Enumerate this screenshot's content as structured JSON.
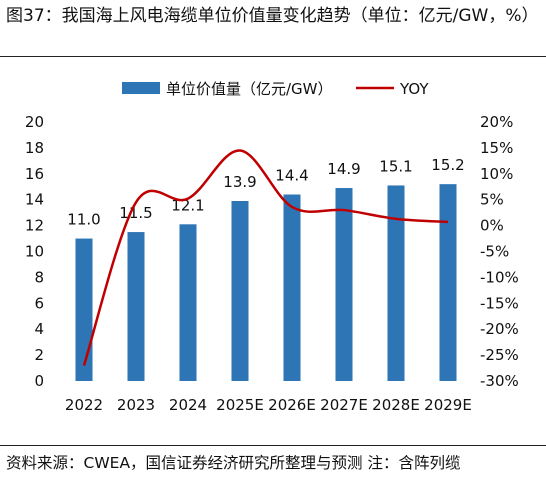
{
  "figure": {
    "title": "图37：我国海上风电海缆单位价值量变化趋势（单位：亿元/GW，%）",
    "source": "资料来源：CWEA，国信证券经济研究所整理与预测  注：含阵列缆"
  },
  "colors": {
    "bar": "#2e75b6",
    "line": "#c00000",
    "text": "#111111",
    "rule": "#222222"
  },
  "chart_data": {
    "type": "bar",
    "title": "",
    "xlabel": "",
    "ylabel": "",
    "categories": [
      "2022",
      "2023",
      "2024",
      "2025E",
      "2026E",
      "2027E",
      "2028E",
      "2029E"
    ],
    "series": [
      {
        "name": "单位价值量（亿元/GW）",
        "type": "bar",
        "axis": "left",
        "values": [
          11.0,
          11.5,
          12.1,
          13.9,
          14.4,
          14.9,
          15.1,
          15.2
        ],
        "labels": [
          "11.0",
          "11.5",
          "12.1",
          "13.9",
          "14.4",
          "14.9",
          "15.1",
          "15.2"
        ]
      },
      {
        "name": "YOY",
        "type": "line",
        "axis": "right",
        "smooth": true,
        "values": [
          -27,
          4.5,
          5.2,
          14.5,
          3.6,
          3.0,
          1.3,
          0.7
        ]
      }
    ],
    "ylim": [
      0,
      20
    ],
    "yticks": [
      "0",
      "2",
      "4",
      "6",
      "8",
      "10",
      "12",
      "14",
      "16",
      "18",
      "20"
    ],
    "y2lim": [
      -30,
      20
    ],
    "y2ticks": [
      "-30%",
      "-25%",
      "-20%",
      "-15%",
      "-10%",
      "-5%",
      "0%",
      "5%",
      "10%",
      "15%",
      "20%"
    ],
    "legend_position": "top",
    "grid": false
  }
}
